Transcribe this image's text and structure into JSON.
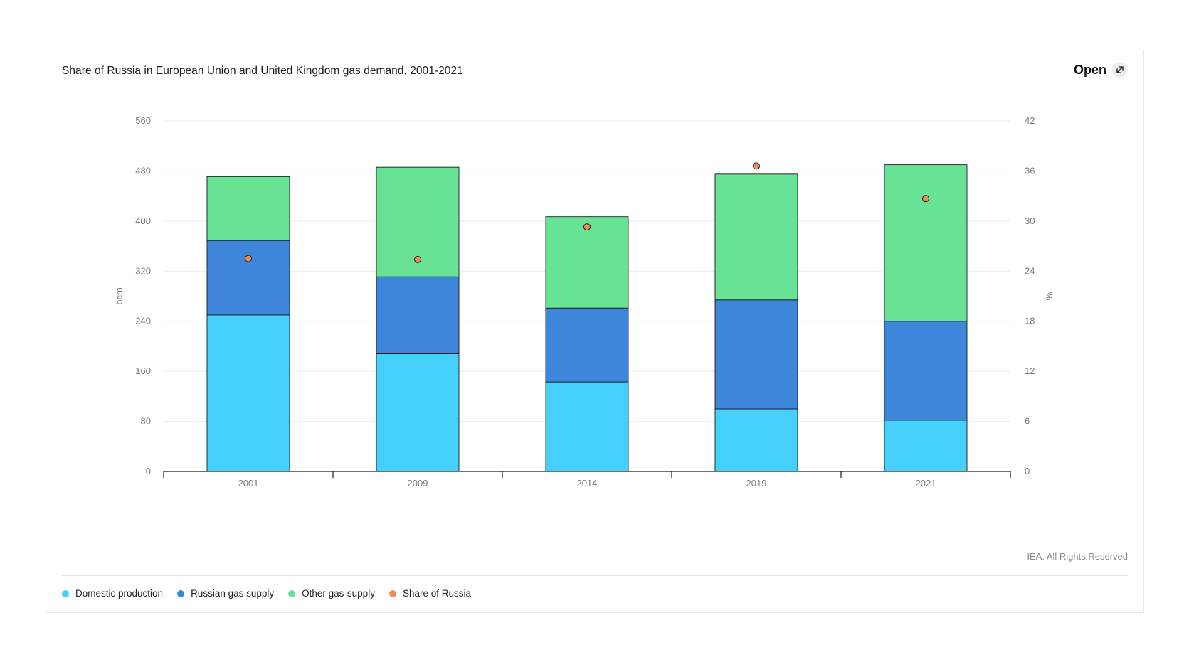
{
  "header": {
    "title": "Share of Russia in European Union and United Kingdom gas demand, 2001-2021",
    "open_label": "Open"
  },
  "footer": {
    "credit": "IEA. All Rights Reserved"
  },
  "colors": {
    "domestic": "#45d0fc",
    "russian": "#3e86d9",
    "other": "#68e396",
    "share": "#f28b55"
  },
  "legend": [
    {
      "label": "Domestic production",
      "color": "#45d0fc"
    },
    {
      "label": "Russian gas supply",
      "color": "#3e86d9"
    },
    {
      "label": "Other gas-supply",
      "color": "#68e396"
    },
    {
      "label": "Share of Russia",
      "color": "#f28b55"
    }
  ],
  "chart_data": {
    "type": "bar",
    "stacked": true,
    "categories": [
      "2001",
      "2009",
      "2014",
      "2019",
      "2021"
    ],
    "series": [
      {
        "name": "Domestic production",
        "axis": "left",
        "values": [
          250,
          188,
          143,
          100,
          82
        ]
      },
      {
        "name": "Russian gas supply",
        "axis": "left",
        "values": [
          119,
          123,
          118,
          174,
          158
        ]
      },
      {
        "name": "Other gas-supply",
        "axis": "left",
        "values": [
          102,
          175,
          146,
          201,
          250
        ]
      },
      {
        "name": "Share of Russia",
        "axis": "right",
        "type": "scatter",
        "values": [
          25.5,
          25.4,
          29.3,
          36.6,
          32.7
        ]
      }
    ],
    "ylabel": "bcm",
    "y2label": "%",
    "ylim": [
      0,
      560
    ],
    "y2lim": [
      0,
      42
    ],
    "yticks": [
      0,
      80,
      160,
      240,
      320,
      400,
      480,
      560
    ],
    "y2ticks": [
      0,
      6,
      12,
      18,
      24,
      30,
      36,
      42
    ],
    "grid": true,
    "legend_position": "bottom-left"
  }
}
